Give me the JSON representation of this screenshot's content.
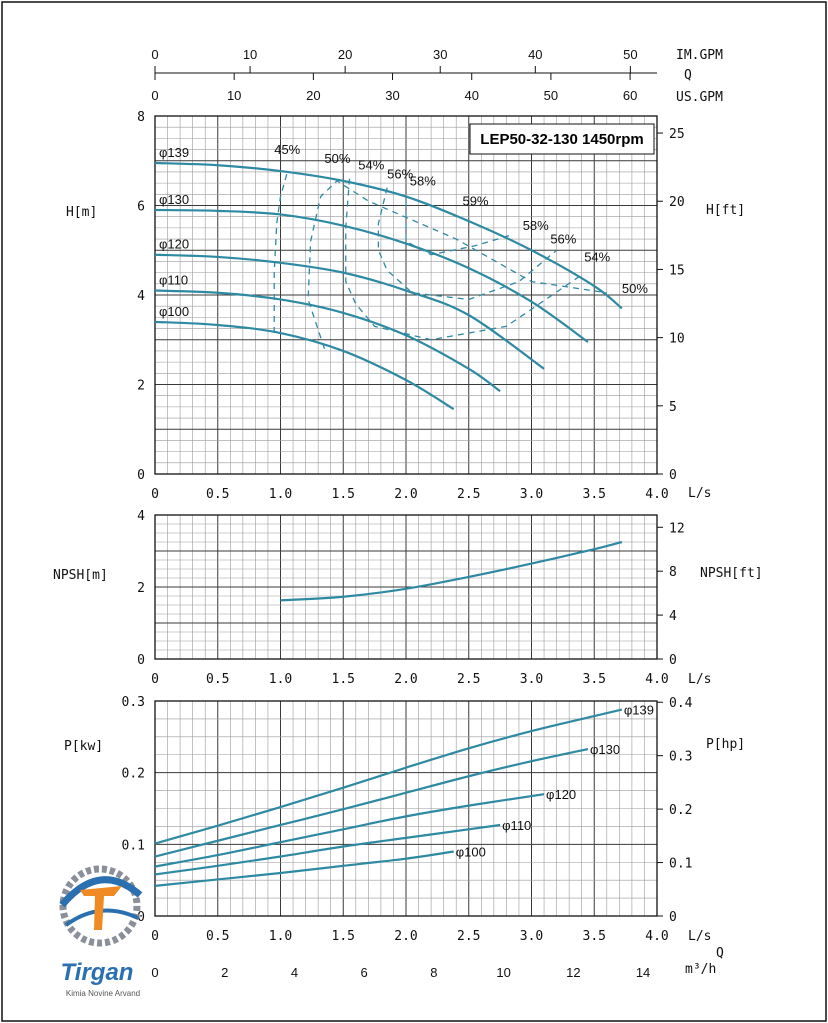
{
  "chart_data": [
    {
      "type": "line",
      "title": "LEP50-32-130 1450rpm",
      "xlabel": "L/s",
      "ylabel": "H[m]",
      "ylabel_right": "H[ft]",
      "xlim": [
        0,
        4.0
      ],
      "ylim": [
        0,
        8
      ],
      "ylim_right": [
        0,
        26.25
      ],
      "x_ticks": [
        "0",
        "0.5",
        "1.0",
        "1.5",
        "2.0",
        "2.5",
        "3.0",
        "3.5",
        "4.0"
      ],
      "y_ticks": [
        "0",
        "2",
        "4",
        "6",
        "8"
      ],
      "y_ticks_right": [
        "0",
        "5",
        "10",
        "15",
        "20",
        "25"
      ],
      "top_axes": [
        {
          "label": "IM.GPM",
          "max": 52.8,
          "ticks": [
            "0",
            "10",
            "20",
            "30",
            "40",
            "50"
          ]
        },
        {
          "label": "Q",
          "max": 0,
          "ticks": []
        },
        {
          "label": "US.GPM",
          "max": 63.4,
          "ticks": [
            "0",
            "10",
            "20",
            "30",
            "40",
            "50",
            "60"
          ]
        }
      ],
      "grid": true,
      "series": [
        {
          "name": "φ139",
          "x": [
            0,
            0.5,
            1.0,
            1.5,
            2.0,
            2.5,
            3.0,
            3.5,
            3.72
          ],
          "y": [
            6.95,
            6.9,
            6.77,
            6.55,
            6.2,
            5.65,
            5.0,
            4.2,
            3.7
          ]
        },
        {
          "name": "φ130",
          "x": [
            0,
            0.5,
            1.0,
            1.5,
            2.0,
            2.5,
            3.0,
            3.45
          ],
          "y": [
            5.9,
            5.88,
            5.8,
            5.55,
            5.15,
            4.6,
            3.85,
            2.95
          ]
        },
        {
          "name": "φ120",
          "x": [
            0,
            0.5,
            1.0,
            1.5,
            2.0,
            2.5,
            3.1
          ],
          "y": [
            4.9,
            4.85,
            4.72,
            4.5,
            4.1,
            3.55,
            2.35
          ]
        },
        {
          "name": "φ110",
          "x": [
            0,
            0.5,
            1.0,
            1.5,
            2.0,
            2.5,
            2.75
          ],
          "y": [
            4.1,
            4.05,
            3.9,
            3.6,
            3.1,
            2.35,
            1.85
          ]
        },
        {
          "name": "φ100",
          "x": [
            0,
            0.5,
            1.0,
            1.5,
            2.0,
            2.38
          ],
          "y": [
            3.4,
            3.33,
            3.15,
            2.75,
            2.1,
            1.45
          ]
        }
      ],
      "efficiency_curves": [
        {
          "label": "45%",
          "x": [
            0.95,
            0.95,
            0.97,
            1.0,
            1.05
          ],
          "y": [
            3.15,
            4.5,
            5.6,
            6.2,
            6.7
          ]
        },
        {
          "label": "50%",
          "x": [
            1.35,
            1.22,
            1.24,
            1.32,
            1.45,
            1.7,
            2.4,
            3.0,
            3.6
          ],
          "y": [
            2.8,
            3.9,
            5.2,
            6.2,
            6.55,
            6.1,
            5.25,
            4.3,
            4.05
          ]
        },
        {
          "label": "54%",
          "x": [
            1.55,
            1.52,
            1.52,
            1.6,
            1.75,
            2.2,
            2.8,
            3.4
          ],
          "y": [
            6.6,
            5.5,
            4.3,
            3.8,
            3.3,
            3.0,
            3.3,
            4.45
          ]
        },
        {
          "label": "56%",
          "x": [
            1.85,
            1.78,
            1.78,
            1.85,
            2.05,
            2.5,
            2.9,
            3.2
          ],
          "y": [
            6.4,
            5.6,
            5.0,
            4.55,
            4.05,
            3.9,
            4.3,
            5.0
          ]
        },
        {
          "label": "58%",
          "x": [
            2.0,
            2.0,
            2.2,
            2.55,
            2.85
          ],
          "y": [
            6.1,
            5.2,
            4.9,
            5.1,
            5.35
          ]
        }
      ],
      "efficiency_top_labels": [
        "45%",
        "50%",
        "54%",
        "56%",
        "58%",
        "59%",
        "58%",
        "56%",
        "54%",
        "50%"
      ]
    },
    {
      "type": "line",
      "xlabel": "L/s",
      "ylabel": "NPSH[m]",
      "ylabel_right": "NPSH[ft]",
      "xlim": [
        0,
        4.0
      ],
      "ylim": [
        0,
        4
      ],
      "ylim_right": [
        0,
        13.12
      ],
      "x_ticks": [
        "0",
        "0.5",
        "1.0",
        "1.5",
        "2.0",
        "2.5",
        "3.0",
        "3.5",
        "4.0"
      ],
      "y_ticks": [
        "0",
        "2",
        "4"
      ],
      "y_ticks_right": [
        "0",
        "4",
        "8",
        "12"
      ],
      "grid": true,
      "series": [
        {
          "x": [
            1.0,
            1.5,
            2.0,
            2.5,
            3.0,
            3.5,
            3.72
          ],
          "y": [
            1.63,
            1.73,
            1.95,
            2.28,
            2.65,
            3.05,
            3.25
          ]
        }
      ]
    },
    {
      "type": "line",
      "xlabel": "L/s",
      "ylabel": "P[kw]",
      "ylabel_right": "P[hp]",
      "xlim": [
        0,
        4.0
      ],
      "ylim": [
        0,
        0.3
      ],
      "ylim_right": [
        0,
        0.4023
      ],
      "x_ticks": [
        "0",
        "0.5",
        "1.0",
        "1.5",
        "2.0",
        "2.5",
        "3.0",
        "3.5",
        "4.0"
      ],
      "y_ticks": [
        "0",
        "0.1",
        "0.2",
        "0.3"
      ],
      "y_ticks_right": [
        "0",
        "0.1",
        "0.2",
        "0.3",
        "0.4"
      ],
      "bottom_axis": {
        "label": "m³/h",
        "max": 14.4,
        "ticks": [
          "0",
          "2",
          "4",
          "6",
          "8",
          "10",
          "12",
          "14"
        ]
      },
      "q_label": "Q",
      "grid": true,
      "series": [
        {
          "name": "φ139",
          "x": [
            0,
            0.5,
            1.0,
            1.5,
            2.0,
            2.5,
            3.0,
            3.5,
            3.72
          ],
          "y": [
            0.101,
            0.126,
            0.152,
            0.179,
            0.207,
            0.234,
            0.258,
            0.279,
            0.288
          ]
        },
        {
          "name": "φ130",
          "x": [
            0,
            0.5,
            1.0,
            1.5,
            2.0,
            2.5,
            3.0,
            3.45
          ],
          "y": [
            0.083,
            0.105,
            0.127,
            0.149,
            0.172,
            0.195,
            0.216,
            0.233
          ]
        },
        {
          "name": "φ120",
          "x": [
            0,
            0.5,
            1.0,
            1.5,
            2.0,
            2.5,
            3.1
          ],
          "y": [
            0.069,
            0.085,
            0.103,
            0.121,
            0.139,
            0.154,
            0.17
          ]
        },
        {
          "name": "φ110",
          "x": [
            0,
            0.5,
            1.0,
            1.5,
            2.0,
            2.5,
            2.75
          ],
          "y": [
            0.058,
            0.07,
            0.083,
            0.097,
            0.109,
            0.121,
            0.127
          ]
        },
        {
          "name": "φ100",
          "x": [
            0,
            0.5,
            1.0,
            1.5,
            2.0,
            2.38
          ],
          "y": [
            0.042,
            0.051,
            0.06,
            0.07,
            0.08,
            0.09
          ]
        }
      ]
    }
  ],
  "logo": {
    "brand": "Tirgan",
    "tagline": "Kimia Novine Arvand",
    "colors": {
      "blue": "#2a6fb0",
      "orange": "#f08a24",
      "gray": "#8a8f99"
    }
  },
  "colors": {
    "curve": "#2e8aa3",
    "grid_major": "#3a3a3a",
    "grid_minor": "#9a9a9a"
  }
}
